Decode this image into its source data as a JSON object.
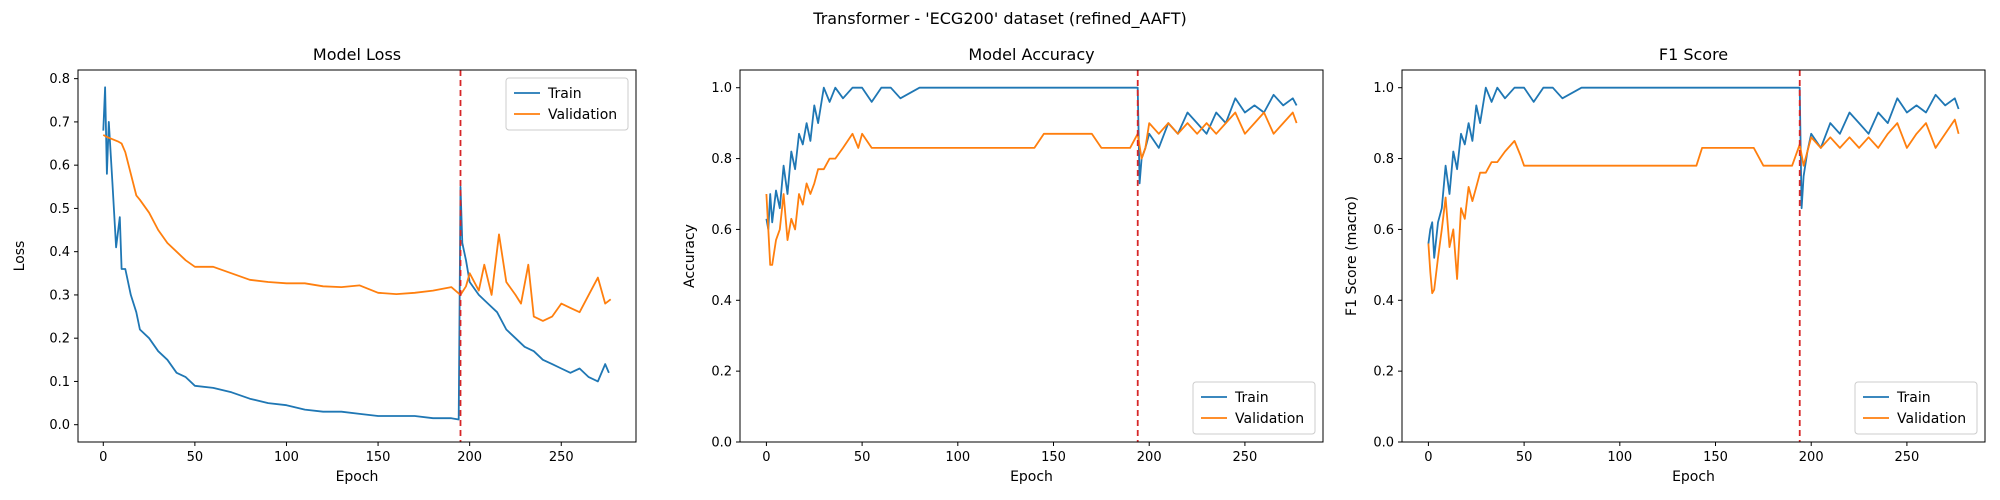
{
  "suptitle": "Transformer - 'ECG200' dataset (refined_AAFT)",
  "colors": {
    "train": "#1f77b4",
    "validation": "#ff7f0e",
    "vline": "#d62728"
  },
  "chart_data": [
    {
      "type": "line",
      "title": "Model Loss",
      "xlabel": "Epoch",
      "ylabel": "Loss",
      "xlim": [
        -13.8,
        290.8
      ],
      "ylim": [
        -0.04,
        0.82
      ],
      "xticks": [
        0,
        50,
        100,
        150,
        200,
        250
      ],
      "yticks": [
        0.0,
        0.1,
        0.2,
        0.3,
        0.4,
        0.5,
        0.6,
        0.7,
        0.8
      ],
      "ytick_labels": [
        "0.0",
        "0.1",
        "0.2",
        "0.3",
        "0.4",
        "0.5",
        "0.6",
        "0.7",
        "0.8"
      ],
      "vline": 195,
      "legend": "top-right",
      "series": [
        {
          "name": "Train",
          "x": [
            0,
            1,
            2,
            3,
            5,
            7,
            9,
            10,
            12,
            15,
            18,
            20,
            25,
            30,
            35,
            40,
            45,
            50,
            60,
            70,
            80,
            90,
            100,
            110,
            120,
            130,
            140,
            150,
            160,
            170,
            180,
            190,
            194,
            195,
            196,
            198,
            200,
            205,
            210,
            215,
            220,
            225,
            230,
            235,
            240,
            245,
            250,
            255,
            260,
            265,
            270,
            274,
            276
          ],
          "y": [
            0.68,
            0.78,
            0.58,
            0.7,
            0.56,
            0.41,
            0.48,
            0.36,
            0.36,
            0.3,
            0.26,
            0.22,
            0.2,
            0.17,
            0.15,
            0.12,
            0.11,
            0.09,
            0.085,
            0.075,
            0.06,
            0.05,
            0.045,
            0.035,
            0.03,
            0.03,
            0.025,
            0.02,
            0.02,
            0.02,
            0.015,
            0.015,
            0.012,
            0.55,
            0.42,
            0.38,
            0.33,
            0.3,
            0.28,
            0.26,
            0.22,
            0.2,
            0.18,
            0.17,
            0.15,
            0.14,
            0.13,
            0.12,
            0.13,
            0.11,
            0.1,
            0.14,
            0.12
          ]
        },
        {
          "name": "Validation",
          "x": [
            0,
            2,
            5,
            8,
            10,
            12,
            15,
            18,
            20,
            25,
            30,
            35,
            40,
            45,
            50,
            55,
            60,
            70,
            80,
            90,
            100,
            110,
            120,
            130,
            140,
            150,
            160,
            170,
            180,
            190,
            195,
            198,
            200,
            205,
            208,
            212,
            216,
            220,
            225,
            228,
            232,
            235,
            240,
            245,
            250,
            255,
            260,
            265,
            270,
            274,
            277
          ],
          "y": [
            0.67,
            0.665,
            0.66,
            0.655,
            0.65,
            0.63,
            0.58,
            0.53,
            0.52,
            0.49,
            0.45,
            0.42,
            0.4,
            0.38,
            0.365,
            0.365,
            0.365,
            0.35,
            0.335,
            0.33,
            0.327,
            0.327,
            0.32,
            0.318,
            0.322,
            0.305,
            0.302,
            0.305,
            0.31,
            0.318,
            0.3,
            0.32,
            0.35,
            0.31,
            0.37,
            0.3,
            0.44,
            0.33,
            0.3,
            0.28,
            0.37,
            0.25,
            0.24,
            0.25,
            0.28,
            0.27,
            0.26,
            0.3,
            0.34,
            0.28,
            0.29
          ]
        }
      ]
    },
    {
      "type": "line",
      "title": "Model Accuracy",
      "xlabel": "Epoch",
      "ylabel": "Accuracy",
      "xlim": [
        -13.8,
        290.8
      ],
      "ylim": [
        0.0,
        1.05
      ],
      "xticks": [
        0,
        50,
        100,
        150,
        200,
        250
      ],
      "yticks": [
        0.0,
        0.2,
        0.4,
        0.6,
        0.8,
        1.0
      ],
      "ytick_labels": [
        "0.0",
        "0.2",
        "0.4",
        "0.6",
        "0.8",
        "1.0"
      ],
      "vline": 194,
      "legend": "bottom-right",
      "series": [
        {
          "name": "Train",
          "x": [
            0,
            1,
            2,
            3,
            5,
            7,
            9,
            11,
            13,
            15,
            17,
            19,
            21,
            23,
            25,
            27,
            30,
            33,
            36,
            40,
            45,
            50,
            55,
            60,
            65,
            70,
            80,
            90,
            100,
            110,
            120,
            130,
            140,
            150,
            160,
            170,
            180,
            190,
            193,
            194,
            195,
            196,
            198,
            200,
            205,
            210,
            215,
            220,
            225,
            230,
            235,
            240,
            245,
            250,
            255,
            260,
            265,
            270,
            275,
            277
          ],
          "y": [
            0.63,
            0.6,
            0.7,
            0.62,
            0.71,
            0.66,
            0.78,
            0.7,
            0.82,
            0.77,
            0.87,
            0.84,
            0.9,
            0.85,
            0.95,
            0.9,
            1.0,
            0.96,
            1.0,
            0.97,
            1.0,
            1.0,
            0.96,
            1.0,
            1.0,
            0.97,
            1.0,
            1.0,
            1.0,
            1.0,
            1.0,
            1.0,
            1.0,
            1.0,
            1.0,
            1.0,
            1.0,
            1.0,
            1.0,
            1.0,
            0.73,
            0.8,
            0.83,
            0.87,
            0.83,
            0.9,
            0.87,
            0.93,
            0.9,
            0.87,
            0.93,
            0.9,
            0.97,
            0.93,
            0.95,
            0.93,
            0.98,
            0.95,
            0.97,
            0.95
          ]
        },
        {
          "name": "Validation",
          "x": [
            0,
            1,
            2,
            3,
            5,
            7,
            9,
            11,
            13,
            15,
            17,
            19,
            21,
            23,
            25,
            27,
            30,
            33,
            36,
            40,
            45,
            48,
            50,
            55,
            60,
            70,
            80,
            90,
            100,
            110,
            120,
            130,
            140,
            145,
            150,
            160,
            170,
            175,
            180,
            190,
            194,
            196,
            198,
            200,
            205,
            210,
            215,
            220,
            225,
            230,
            235,
            240,
            245,
            250,
            255,
            260,
            265,
            270,
            275,
            277
          ],
          "y": [
            0.7,
            0.6,
            0.5,
            0.5,
            0.57,
            0.6,
            0.7,
            0.57,
            0.63,
            0.6,
            0.7,
            0.67,
            0.73,
            0.7,
            0.73,
            0.77,
            0.77,
            0.8,
            0.8,
            0.83,
            0.87,
            0.83,
            0.87,
            0.83,
            0.83,
            0.83,
            0.83,
            0.83,
            0.83,
            0.83,
            0.83,
            0.83,
            0.83,
            0.87,
            0.87,
            0.87,
            0.87,
            0.83,
            0.83,
            0.83,
            0.87,
            0.8,
            0.83,
            0.9,
            0.87,
            0.9,
            0.87,
            0.9,
            0.87,
            0.9,
            0.87,
            0.9,
            0.93,
            0.87,
            0.9,
            0.93,
            0.87,
            0.9,
            0.93,
            0.9
          ]
        }
      ]
    },
    {
      "type": "line",
      "title": "F1 Score",
      "xlabel": "Epoch",
      "ylabel": "F1 Score (macro)",
      "xlim": [
        -13.8,
        290.8
      ],
      "ylim": [
        0.0,
        1.05
      ],
      "xticks": [
        0,
        50,
        100,
        150,
        200,
        250
      ],
      "yticks": [
        0.0,
        0.2,
        0.4,
        0.6,
        0.8,
        1.0
      ],
      "ytick_labels": [
        "0.0",
        "0.2",
        "0.4",
        "0.6",
        "0.8",
        "1.0"
      ],
      "vline": 194,
      "legend": "bottom-right",
      "series": [
        {
          "name": "Train",
          "x": [
            0,
            1,
            2,
            3,
            5,
            7,
            9,
            11,
            13,
            15,
            17,
            19,
            21,
            23,
            25,
            27,
            30,
            33,
            36,
            40,
            45,
            50,
            55,
            60,
            65,
            70,
            80,
            90,
            100,
            110,
            120,
            130,
            140,
            150,
            160,
            170,
            180,
            190,
            193,
            194,
            195,
            196,
            198,
            200,
            205,
            210,
            215,
            220,
            225,
            230,
            235,
            240,
            245,
            250,
            255,
            260,
            265,
            270,
            275,
            277
          ],
          "y": [
            0.56,
            0.6,
            0.62,
            0.52,
            0.62,
            0.66,
            0.78,
            0.7,
            0.82,
            0.77,
            0.87,
            0.84,
            0.9,
            0.85,
            0.95,
            0.9,
            1.0,
            0.96,
            1.0,
            0.97,
            1.0,
            1.0,
            0.96,
            1.0,
            1.0,
            0.97,
            1.0,
            1.0,
            1.0,
            1.0,
            1.0,
            1.0,
            1.0,
            1.0,
            1.0,
            1.0,
            1.0,
            1.0,
            1.0,
            1.0,
            0.66,
            0.75,
            0.82,
            0.87,
            0.83,
            0.9,
            0.87,
            0.93,
            0.9,
            0.87,
            0.93,
            0.9,
            0.97,
            0.93,
            0.95,
            0.93,
            0.98,
            0.95,
            0.97,
            0.94
          ]
        },
        {
          "name": "Validation",
          "x": [
            0,
            1,
            2,
            3,
            5,
            7,
            9,
            11,
            13,
            15,
            17,
            19,
            21,
            23,
            25,
            27,
            30,
            33,
            36,
            40,
            45,
            48,
            50,
            55,
            60,
            70,
            80,
            90,
            100,
            110,
            120,
            130,
            140,
            143,
            150,
            160,
            170,
            175,
            180,
            190,
            194,
            196,
            198,
            200,
            205,
            210,
            215,
            220,
            225,
            230,
            235,
            240,
            245,
            250,
            255,
            260,
            265,
            270,
            275,
            277
          ],
          "y": [
            0.56,
            0.48,
            0.42,
            0.43,
            0.52,
            0.6,
            0.69,
            0.55,
            0.6,
            0.46,
            0.66,
            0.63,
            0.72,
            0.68,
            0.72,
            0.76,
            0.76,
            0.79,
            0.79,
            0.82,
            0.85,
            0.81,
            0.78,
            0.78,
            0.78,
            0.78,
            0.78,
            0.78,
            0.78,
            0.78,
            0.78,
            0.78,
            0.78,
            0.83,
            0.83,
            0.83,
            0.83,
            0.78,
            0.78,
            0.78,
            0.84,
            0.78,
            0.82,
            0.86,
            0.83,
            0.86,
            0.83,
            0.86,
            0.83,
            0.86,
            0.83,
            0.87,
            0.9,
            0.83,
            0.87,
            0.9,
            0.83,
            0.87,
            0.91,
            0.87
          ]
        }
      ]
    }
  ]
}
